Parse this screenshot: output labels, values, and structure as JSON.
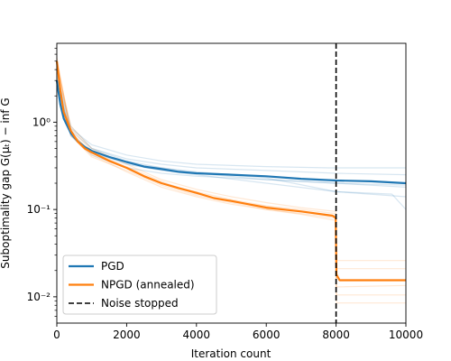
{
  "chart_data": {
    "type": "line",
    "title": "",
    "xlabel": "Iteration count",
    "ylabel": "Suboptimality gap G(μₜ) − inf G",
    "x_ticks": [
      "0",
      "2000",
      "4000",
      "6000",
      "8000",
      "10000"
    ],
    "y_ticks": [
      "10⁻²",
      "10⁻¹",
      "10⁰"
    ],
    "xlim": [
      0,
      10000
    ],
    "ylim": [
      0.005,
      8
    ],
    "yscale": "log",
    "grid": false,
    "legend_position": "lower-left",
    "vertical_line": {
      "x": 8000,
      "label": "Noise stopped",
      "color": "#000000",
      "style": "dashed"
    },
    "series": [
      {
        "name": "PGD",
        "color": "#1f77b4",
        "x": [
          0,
          100,
          200,
          400,
          600,
          800,
          1000,
          1500,
          2000,
          2500,
          3000,
          3500,
          4000,
          5000,
          6000,
          7000,
          8000,
          9000,
          10000
        ],
        "y": [
          3.0,
          1.6,
          1.1,
          0.75,
          0.6,
          0.52,
          0.47,
          0.4,
          0.35,
          0.31,
          0.29,
          0.27,
          0.26,
          0.25,
          0.24,
          0.225,
          0.215,
          0.21,
          0.2
        ]
      },
      {
        "name": "NPGD (annealed)",
        "color": "#ff7f0e",
        "x": [
          0,
          100,
          200,
          400,
          600,
          800,
          1000,
          1500,
          2000,
          2500,
          3000,
          3500,
          4000,
          4500,
          5000,
          6000,
          7000,
          7900,
          7990,
          8010,
          8100,
          9000,
          10000
        ],
        "y": [
          5.0,
          2.3,
          1.3,
          0.8,
          0.6,
          0.5,
          0.45,
          0.36,
          0.3,
          0.24,
          0.2,
          0.175,
          0.155,
          0.135,
          0.125,
          0.105,
          0.095,
          0.085,
          0.08,
          0.018,
          0.0155,
          0.0155,
          0.0155
        ]
      }
    ],
    "faint_runs": [
      {
        "color": "#1f77b4",
        "x": [
          0,
          400,
          1000,
          2000,
          3000,
          4000,
          6000,
          8000,
          10000
        ],
        "y": [
          2.6,
          0.8,
          0.5,
          0.38,
          0.33,
          0.3,
          0.28,
          0.26,
          0.25
        ]
      },
      {
        "color": "#1f77b4",
        "x": [
          0,
          400,
          1000,
          2000,
          3000,
          4000,
          6000,
          8000,
          10000
        ],
        "y": [
          3.4,
          0.7,
          0.42,
          0.3,
          0.26,
          0.24,
          0.22,
          0.2,
          0.19
        ]
      },
      {
        "color": "#1f77b4",
        "x": [
          0,
          400,
          1000,
          2000,
          3000,
          4000,
          6000,
          8000,
          9600,
          10000
        ],
        "y": [
          2.8,
          0.75,
          0.45,
          0.33,
          0.28,
          0.25,
          0.2,
          0.16,
          0.15,
          0.1
        ]
      },
      {
        "color": "#1f77b4",
        "x": [
          0,
          400,
          1000,
          2000,
          3000,
          4000,
          6000,
          7800,
          10000
        ],
        "y": [
          3.2,
          0.85,
          0.55,
          0.42,
          0.36,
          0.33,
          0.31,
          0.3,
          0.3
        ]
      },
      {
        "color": "#1f77b4",
        "x": [
          0,
          400,
          1000,
          2000,
          3000,
          4000,
          6000,
          8000,
          10000
        ],
        "y": [
          2.4,
          0.7,
          0.46,
          0.34,
          0.3,
          0.27,
          0.23,
          0.16,
          0.14
        ]
      },
      {
        "color": "#1f77b4",
        "x": [
          0,
          400,
          1000,
          2000,
          3000,
          4000,
          6000,
          8000,
          10000
        ],
        "y": [
          3.6,
          0.9,
          0.5,
          0.36,
          0.3,
          0.26,
          0.22,
          0.2,
          0.18
        ]
      },
      {
        "color": "#ff7f0e",
        "x": [
          0,
          400,
          1000,
          2000,
          3000,
          4000,
          5000,
          6000,
          7000,
          7990,
          8010,
          10000
        ],
        "y": [
          4.5,
          0.9,
          0.5,
          0.33,
          0.22,
          0.17,
          0.14,
          0.12,
          0.105,
          0.095,
          0.026,
          0.026
        ]
      },
      {
        "color": "#ff7f0e",
        "x": [
          0,
          400,
          1000,
          2000,
          3000,
          4000,
          5000,
          6000,
          7000,
          7990,
          8010,
          10000
        ],
        "y": [
          5.2,
          0.75,
          0.42,
          0.27,
          0.18,
          0.14,
          0.115,
          0.1,
          0.09,
          0.08,
          0.021,
          0.021
        ]
      },
      {
        "color": "#ff7f0e",
        "x": [
          0,
          400,
          1000,
          2000,
          3000,
          4000,
          5000,
          6000,
          7000,
          7990,
          8010,
          10000
        ],
        "y": [
          4.8,
          0.85,
          0.47,
          0.3,
          0.2,
          0.16,
          0.13,
          0.11,
          0.1,
          0.09,
          0.013,
          0.0135
        ]
      },
      {
        "color": "#ff7f0e",
        "x": [
          0,
          400,
          1000,
          2000,
          3000,
          4000,
          5000,
          6000,
          7000,
          7990,
          8010,
          10000
        ],
        "y": [
          5.5,
          0.7,
          0.4,
          0.28,
          0.19,
          0.145,
          0.12,
          0.1,
          0.088,
          0.075,
          0.0085,
          0.0085
        ]
      },
      {
        "color": "#ff7f0e",
        "x": [
          0,
          400,
          1000,
          2000,
          3000,
          4000,
          5000,
          6000,
          7000,
          7990,
          8010,
          10000
        ],
        "y": [
          4.2,
          0.78,
          0.44,
          0.31,
          0.21,
          0.15,
          0.125,
          0.108,
          0.095,
          0.085,
          0.0105,
          0.0105
        ]
      }
    ],
    "legend": [
      "PGD",
      "NPGD (annealed)",
      "Noise stopped"
    ]
  }
}
